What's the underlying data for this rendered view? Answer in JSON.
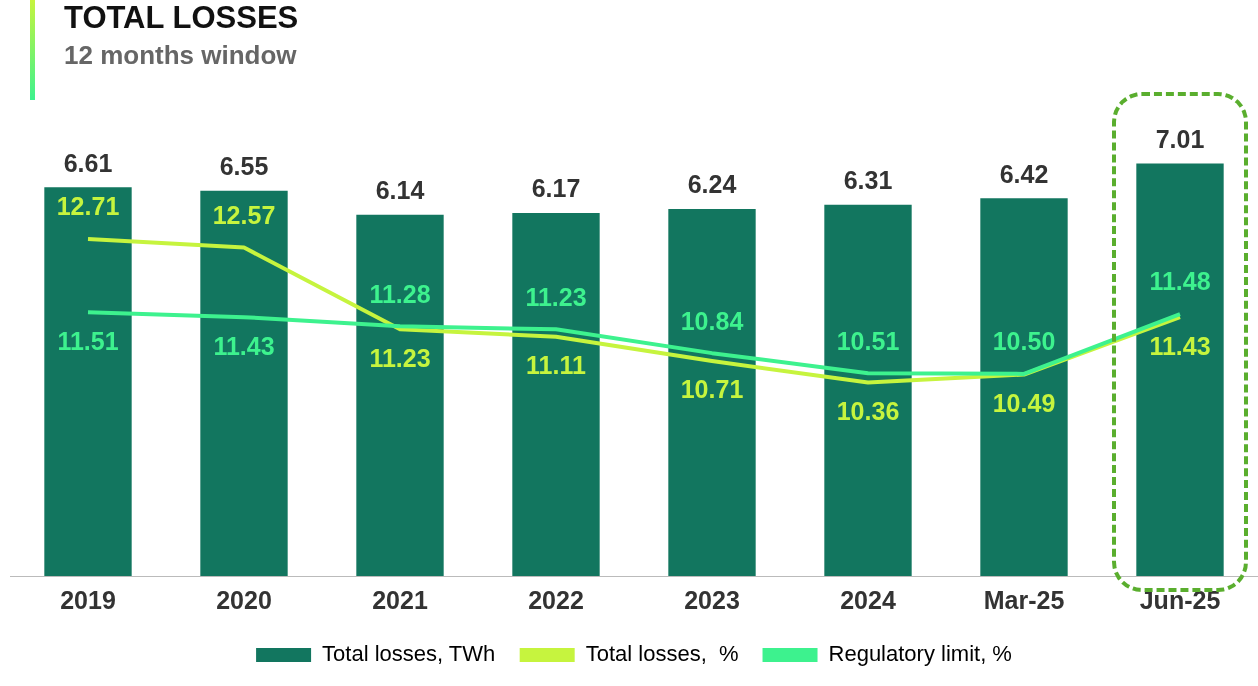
{
  "chart_data": {
    "type": "bar",
    "title": "TOTAL LOSSES",
    "subtitle": "12 months window",
    "categories": [
      "2019",
      "2020",
      "2021",
      "2022",
      "2023",
      "2024",
      "Mar-25",
      "Jun-25"
    ],
    "series": [
      {
        "name": "Total losses, TWh",
        "color": "#12765f",
        "values": [
          6.61,
          6.55,
          6.14,
          6.17,
          6.24,
          6.31,
          6.42,
          7.01
        ],
        "value_labels": [
          "6.61",
          "6.55",
          "6.14",
          "6.17",
          "6.24",
          "6.31",
          "6.42",
          "7.01"
        ]
      },
      {
        "name": "Total losses,  %",
        "type": "line",
        "axis": "y2",
        "color": "#c6f43e",
        "values": [
          12.71,
          12.57,
          11.23,
          11.11,
          10.71,
          10.36,
          10.49,
          11.43
        ],
        "value_labels": [
          "12.71",
          "12.57",
          "11.23",
          "11.11",
          "10.71",
          "10.36",
          "10.49",
          "11.43"
        ]
      },
      {
        "name": "Regulatory limit, %",
        "type": "line",
        "axis": "y2",
        "color": "#3df28e",
        "values": [
          11.51,
          11.43,
          11.28,
          11.23,
          10.84,
          10.51,
          10.5,
          11.48
        ],
        "value_labels": [
          "11.51",
          "11.43",
          "11.28",
          "11.23",
          "10.84",
          "10.51",
          "10.50",
          "11.48"
        ]
      }
    ],
    "legend": "bottom",
    "grid": false,
    "marker": "none",
    "line_style": "solid",
    "tick_labels": "x"
  }
}
